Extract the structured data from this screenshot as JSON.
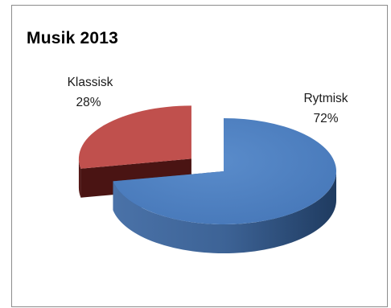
{
  "chart_data": {
    "type": "pie",
    "title": "Musik 2013",
    "slices": [
      {
        "label": "Rytmisk",
        "value": 72,
        "value_label": "72%",
        "color": "#4f81bd"
      },
      {
        "label": "Klassisk",
        "value": 28,
        "value_label": "28%",
        "color": "#c0504d"
      }
    ],
    "style": "3d-exploded",
    "legend": "none",
    "data_labels": "category-and-percent"
  }
}
